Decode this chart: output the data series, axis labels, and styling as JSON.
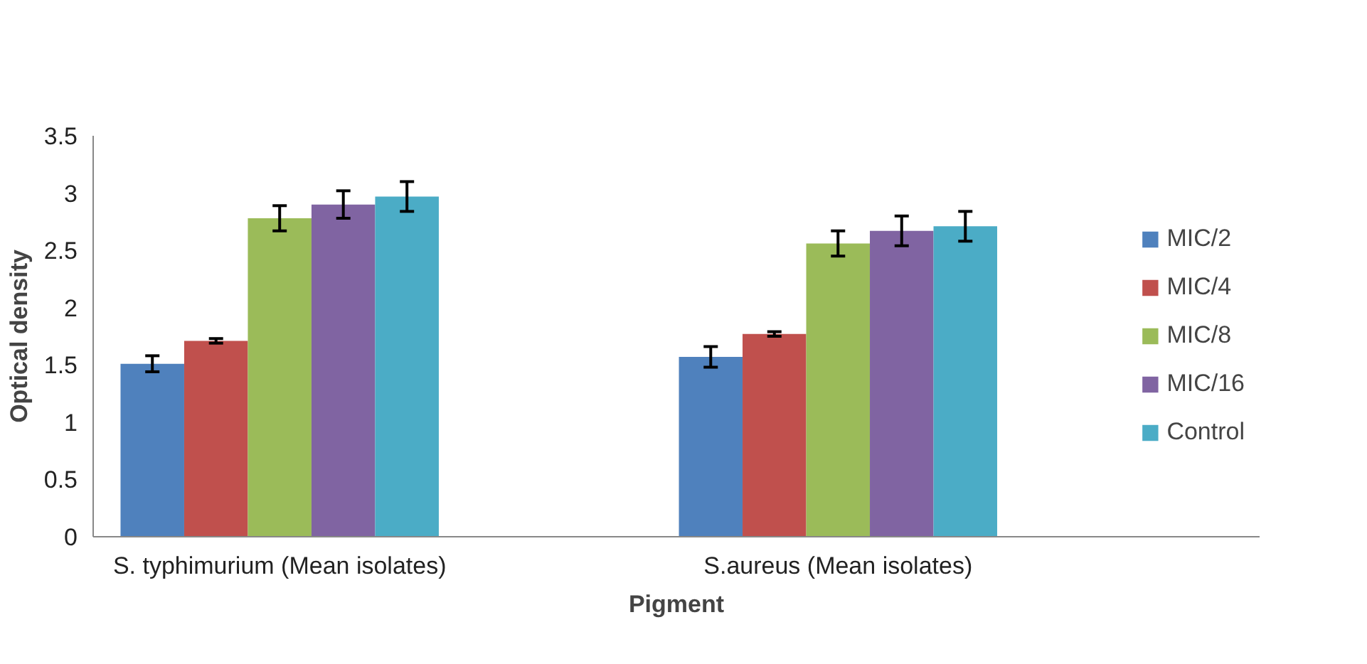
{
  "chart_data": {
    "type": "bar",
    "xlabel": "Pigment",
    "ylabel": "Optical density",
    "categories": [
      "S. typhimurium (Mean isolates)",
      "S.aureus (Mean isolates)"
    ],
    "series": [
      {
        "name": "MIC/2",
        "color": "#4f81bd",
        "values": [
          1.51,
          1.57
        ],
        "errors": [
          0.07,
          0.09
        ]
      },
      {
        "name": "MIC/4",
        "color": "#c0504d",
        "values": [
          1.71,
          1.77
        ],
        "errors": [
          0.02,
          0.02
        ]
      },
      {
        "name": "MIC/8",
        "color": "#9bbb59",
        "values": [
          2.78,
          2.56
        ],
        "errors": [
          0.11,
          0.11
        ]
      },
      {
        "name": "MIC/16",
        "color": "#8064a2",
        "values": [
          2.9,
          2.67
        ],
        "errors": [
          0.12,
          0.13
        ]
      },
      {
        "name": "Control",
        "color": "#4bacc6",
        "values": [
          2.97,
          2.71
        ],
        "errors": [
          0.13,
          0.13
        ]
      }
    ],
    "ylim": [
      0,
      3.5
    ],
    "yticks": [
      0,
      0.5,
      1,
      1.5,
      2,
      2.5,
      3,
      3.5
    ],
    "grid": false,
    "legend": "right"
  }
}
